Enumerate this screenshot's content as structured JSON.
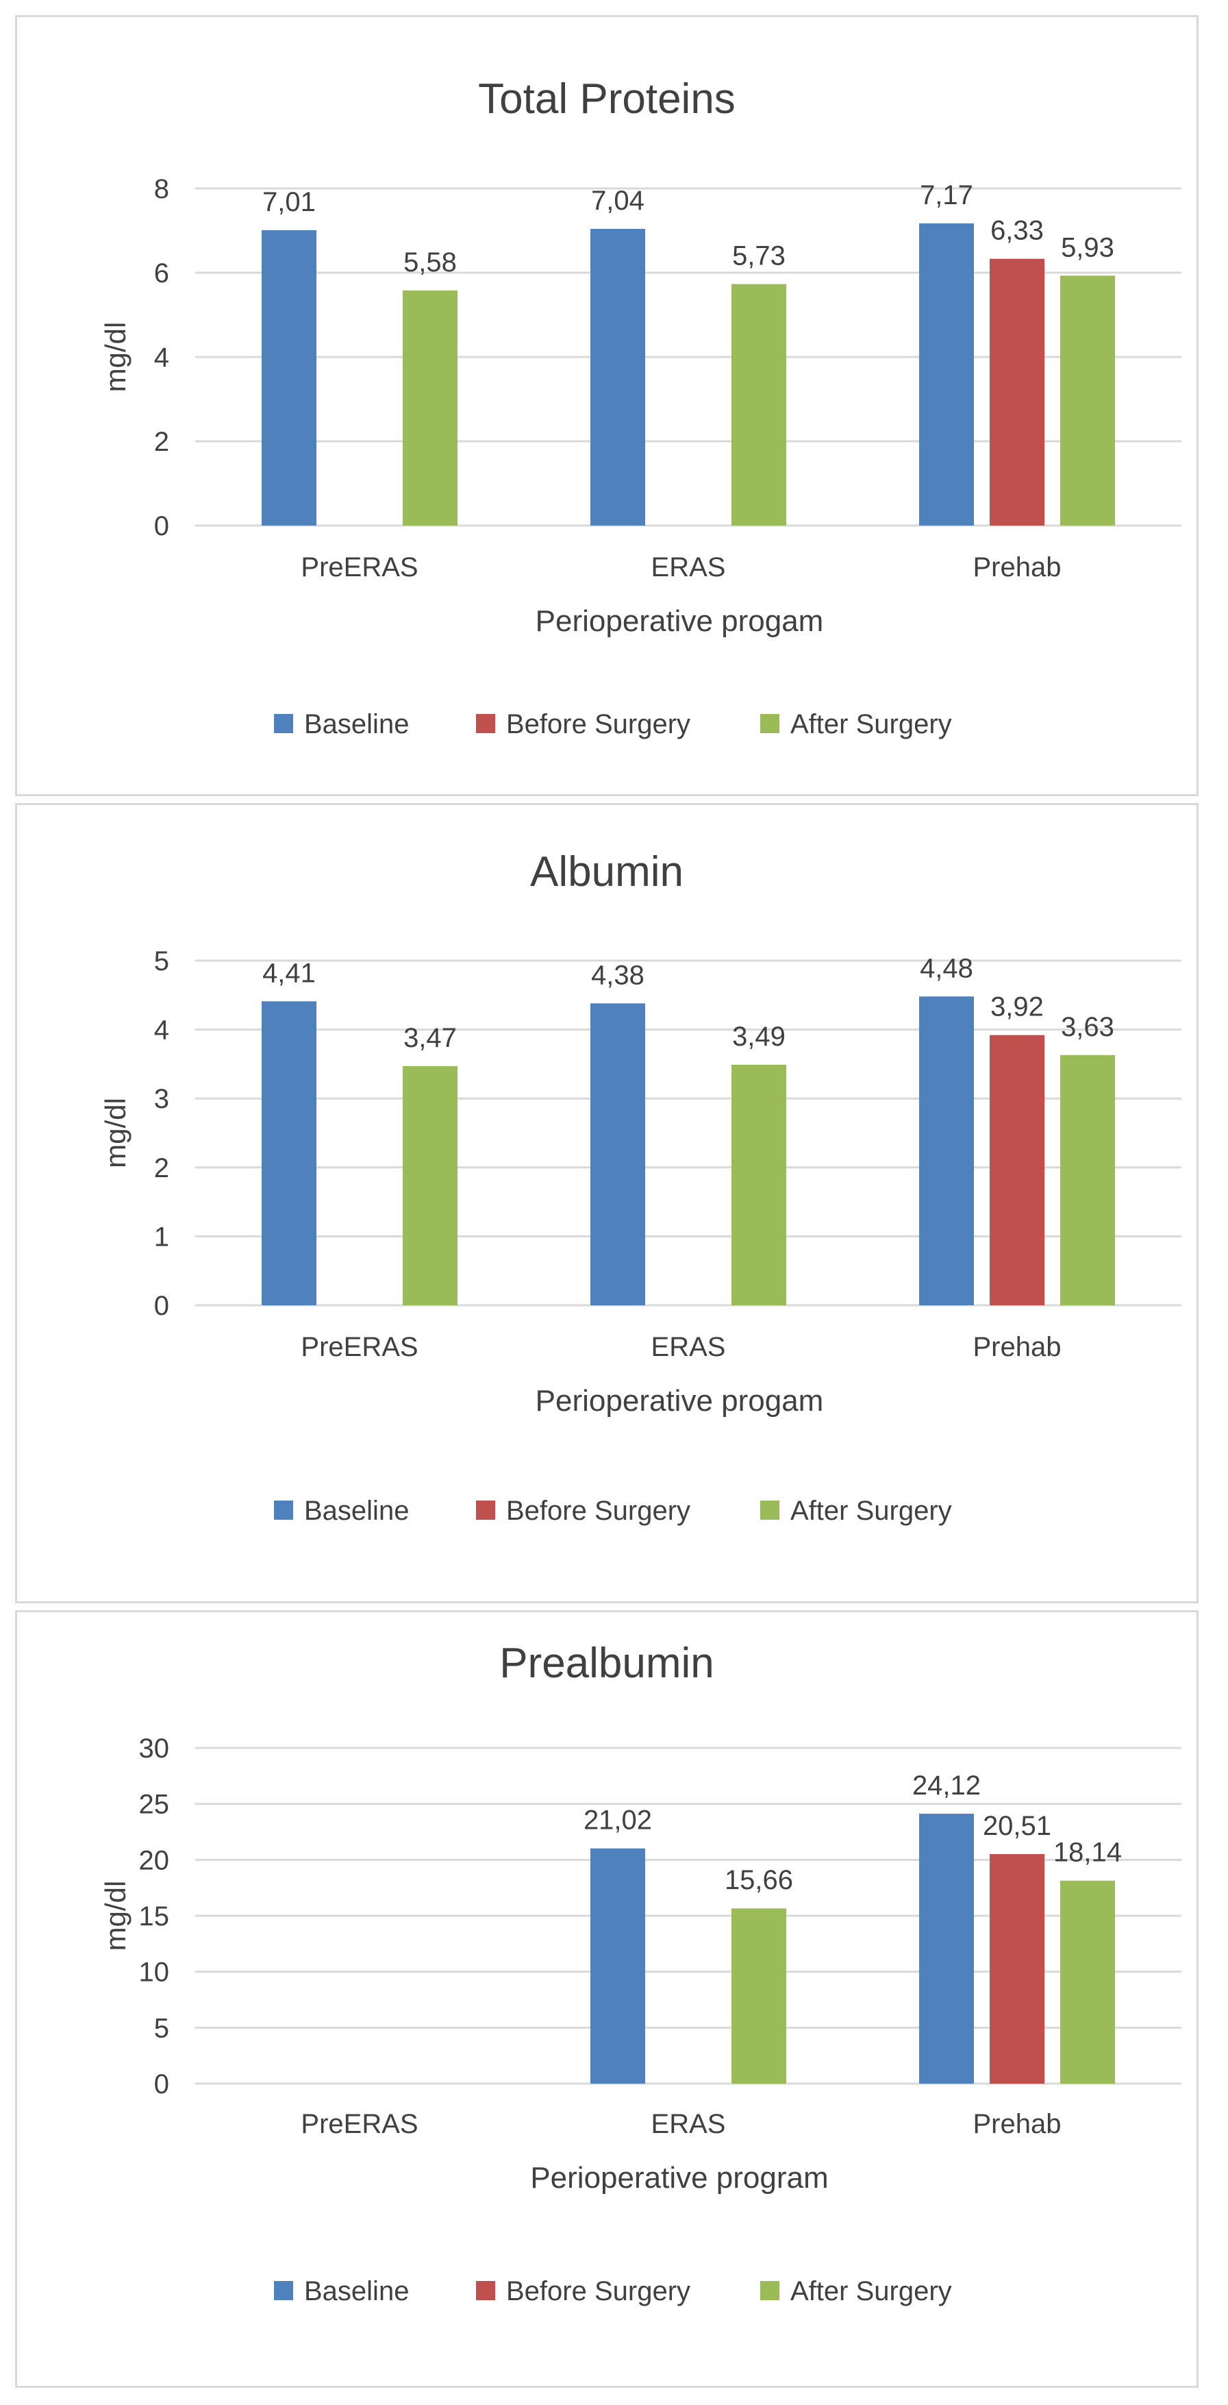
{
  "series_colors": {
    "Baseline": "#4f81bd",
    "Before Surgery": "#c0504d",
    "After Surgery": "#9bbb59"
  },
  "chart_data": [
    {
      "type": "bar",
      "title": "Total Proteins",
      "xlabel": "Perioperative progam",
      "ylabel": "mg/dl",
      "ylim": [
        0,
        8
      ],
      "yticks": [
        0,
        2,
        4,
        6,
        8
      ],
      "categories": [
        "PreERAS",
        "ERAS",
        "Prehab"
      ],
      "series": [
        {
          "name": "Baseline",
          "values": [
            7.01,
            7.04,
            7.17
          ],
          "labels": [
            "7,01",
            "7,04",
            "7,17"
          ]
        },
        {
          "name": "Before Surgery",
          "values": [
            null,
            null,
            6.33
          ],
          "labels": [
            null,
            null,
            "6,33"
          ]
        },
        {
          "name": "After Surgery",
          "values": [
            5.58,
            5.73,
            5.93
          ],
          "labels": [
            "5,58",
            "5,73",
            "5,93"
          ]
        }
      ],
      "legend": [
        "Baseline",
        "Before Surgery",
        "After Surgery"
      ],
      "legend_position": "bottom",
      "grid": true
    },
    {
      "type": "bar",
      "title": "Albumin",
      "xlabel": "Perioperative progam",
      "ylabel": "mg/dl",
      "ylim": [
        0,
        5
      ],
      "yticks": [
        0,
        1,
        2,
        3,
        4,
        5
      ],
      "categories": [
        "PreERAS",
        "ERAS",
        "Prehab"
      ],
      "series": [
        {
          "name": "Baseline",
          "values": [
            4.41,
            4.38,
            4.48
          ],
          "labels": [
            "4,41",
            "4,38",
            "4,48"
          ]
        },
        {
          "name": "Before Surgery",
          "values": [
            null,
            null,
            3.92
          ],
          "labels": [
            null,
            null,
            "3,92"
          ]
        },
        {
          "name": "After Surgery",
          "values": [
            3.47,
            3.49,
            3.63
          ],
          "labels": [
            "3,47",
            "3,49",
            "3,63"
          ]
        }
      ],
      "legend": [
        "Baseline",
        "Before Surgery",
        "After Surgery"
      ],
      "legend_position": "bottom",
      "grid": true
    },
    {
      "type": "bar",
      "title": "Prealbumin",
      "xlabel": "Perioperative program",
      "ylabel": "mg/dl",
      "ylim": [
        0,
        30
      ],
      "yticks": [
        0,
        5,
        10,
        15,
        20,
        25,
        30
      ],
      "categories": [
        "PreERAS",
        "ERAS",
        "Prehab"
      ],
      "series": [
        {
          "name": "Baseline",
          "values": [
            null,
            21.02,
            24.12
          ],
          "labels": [
            null,
            "21,02",
            "24,12"
          ]
        },
        {
          "name": "Before Surgery",
          "values": [
            null,
            null,
            20.51
          ],
          "labels": [
            null,
            null,
            "20,51"
          ]
        },
        {
          "name": "After Surgery",
          "values": [
            null,
            15.66,
            18.14
          ],
          "labels": [
            null,
            "15,66",
            "18,14"
          ]
        }
      ],
      "legend": [
        "Baseline",
        "Before Surgery",
        "After Surgery"
      ],
      "legend_position": "bottom",
      "grid": true
    }
  ]
}
